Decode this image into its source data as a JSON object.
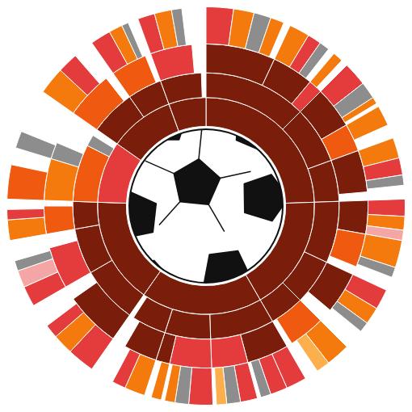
{
  "chart_data": {
    "type": "sunburst",
    "tick_labels": false,
    "nodes": [
      {
        "value": 88,
        "color": "#7a1e0b",
        "children": [
          {
            "value": 45,
            "color": "#7a1e0b",
            "children": [
              {
                "value": 25,
                "color": "#7a1e0b",
                "children": [
                  {
                    "value": 8,
                    "color": "#e43b3d"
                  },
                  {
                    "value": 6,
                    "color": "#f47a0e"
                  },
                  {
                    "value": 5,
                    "color": "#8d8d8d"
                  },
                  {
                    "value": 4,
                    "color": "#f47a0e"
                  }
                ]
              },
              {
                "value": 15,
                "color": "#7a1e0b",
                "children": [
                  {
                    "value": 6,
                    "color": "#f47a0e"
                  },
                  {
                    "value": 4,
                    "color": "#e43b3d"
                  },
                  {
                    "value": 3,
                    "color": "#8d8d8d"
                  }
                ]
              },
              {
                "value": 5,
                "color": "#e43b3d",
                "children": [
                  {
                    "value": 3,
                    "color": "#f47a0e"
                  }
                ]
              }
            ]
          },
          {
            "value": 25,
            "color": "#7a1e0b",
            "children": [
              {
                "value": 15,
                "color": "#7a1e0b",
                "children": [
                  {
                    "value": 7,
                    "color": "#e43b3d"
                  },
                  {
                    "value": 5,
                    "color": "#8d8d8d"
                  },
                  {
                    "value": 2,
                    "color": "#f47a0e"
                  }
                ]
              },
              {
                "value": 10,
                "color": "#ef5a10",
                "children": [
                  {
                    "value": 6,
                    "color": "#f47a0e"
                  }
                ]
              }
            ]
          },
          {
            "value": 18,
            "color": "#7a1e0b",
            "children": [
              {
                "value": 15,
                "color": "#7a1e0b",
                "children": [
                  {
                    "value": 6,
                    "color": "#f47a0e"
                  },
                  {
                    "value": 5,
                    "color": "#e43b3d"
                  },
                  {
                    "value": 3,
                    "color": "#8d8d8d"
                  }
                ]
              }
            ]
          }
        ]
      },
      {
        "value": 62,
        "color": "#7a1e0b",
        "children": [
          {
            "value": 27,
            "color": "#7a1e0b",
            "children": [
              {
                "value": 12,
                "color": "#7a1e0b",
                "children": [
                  {
                    "value": 5,
                    "color": "#e43b3d"
                  },
                  {
                    "value": 4,
                    "color": "#f47a0e"
                  },
                  {
                    "value": 3,
                    "color": "#f4a6a6"
                  }
                ]
              },
              {
                "value": 12,
                "color": "#ef5a10",
                "children": [
                  {
                    "value": 8,
                    "color": "#f47a0e"
                  },
                  {
                    "value": 3,
                    "color": "#8d8d8d"
                  }
                ]
              }
            ]
          },
          {
            "value": 20,
            "color": "#7a1e0b",
            "children": [
              {
                "value": 15,
                "color": "#7a1e0b",
                "children": [
                  {
                    "value": 6,
                    "color": "#e43b3d"
                  },
                  {
                    "value": 5,
                    "color": "#f47a0e"
                  },
                  {
                    "value": 3,
                    "color": "#8d8d8d"
                  }
                ]
              }
            ]
          },
          {
            "value": 15,
            "color": "#7a1e0b",
            "children": [
              {
                "value": 13,
                "color": "#ef5a10",
                "children": [
                  {
                    "value": 7,
                    "color": "#f47a0e"
                  },
                  {
                    "value": 4,
                    "color": "#fbb04d"
                  }
                ]
              }
            ]
          }
        ]
      },
      {
        "value": 65,
        "color": "#7a1e0b",
        "children": [
          {
            "value": 28,
            "color": "#7a1e0b",
            "children": [
              {
                "value": 15,
                "color": "#7a1e0b",
                "children": [
                  {
                    "value": 6,
                    "color": "#e43b3d"
                  },
                  {
                    "value": 5,
                    "color": "#e43b3d"
                  },
                  {
                    "value": 3,
                    "color": "#8d8d8d"
                  }
                ]
              },
              {
                "value": 13,
                "color": "#e43b3d",
                "children": [
                  {
                    "value": 5,
                    "color": "#e43b3d"
                  },
                  {
                    "value": 4,
                    "color": "#8d8d8d"
                  },
                  {
                    "value": 3,
                    "color": "#fbb04d"
                  }
                ]
              }
            ]
          },
          {
            "value": 20,
            "color": "#7a1e0b",
            "children": [
              {
                "value": 15,
                "color": "#e43b3d",
                "children": [
                  {
                    "value": 7,
                    "color": "#e43b3d"
                  },
                  {
                    "value": 4,
                    "color": "#8d8d8d"
                  },
                  {
                    "value": 3,
                    "color": "#f47a0e"
                  }
                ]
              },
              {
                "value": 5,
                "color": "#7a1e0b",
                "children": [
                  {
                    "value": 3,
                    "color": "#f47a0e"
                  }
                ]
              }
            ]
          },
          {
            "value": 15,
            "color": "#7a1e0b",
            "children": [
              {
                "value": 12,
                "color": "#7a1e0b",
                "children": [
                  {
                    "value": 6,
                    "color": "#f47a0e"
                  },
                  {
                    "value": 4,
                    "color": "#e43b3d"
                  }
                ]
              }
            ]
          }
        ]
      },
      {
        "value": 57,
        "color": "#7a1e0b",
        "children": [
          {
            "value": 25,
            "color": "#7a1e0b",
            "children": [
              {
                "value": 20,
                "color": "#7a1e0b",
                "children": [
                  {
                    "value": 8,
                    "color": "#e43b3d"
                  },
                  {
                    "value": 6,
                    "color": "#f47a0e"
                  },
                  {
                    "value": 4,
                    "color": "#e43b3d"
                  }
                ]
              }
            ]
          },
          {
            "value": 20,
            "color": "#7a1e0b",
            "children": [
              {
                "value": 15,
                "color": "#e43b3d",
                "children": [
                  {
                    "value": 6,
                    "color": "#e43b3d"
                  },
                  {
                    "value": 5,
                    "color": "#f4a6a6"
                  },
                  {
                    "value": 3,
                    "color": "#8d8d8d"
                  }
                ]
              }
            ]
          },
          {
            "value": 12,
            "color": "#7a1e0b",
            "children": [
              {
                "value": 10,
                "color": "#ef5a10",
                "children": [
                  {
                    "value": 6,
                    "color": "#f47a0e"
                  },
                  {
                    "value": 3,
                    "color": "#e43b3d"
                  }
                ]
              }
            ]
          }
        ]
      },
      {
        "value": 33,
        "color": "#e43b3d",
        "children": [
          {
            "value": 25,
            "color": "#ef5a10",
            "children": [
              {
                "value": 15,
                "color": "#f47a0e",
                "children": [
                  {
                    "value": 10,
                    "color": "#ef5a10"
                  }
                ]
              },
              {
                "value": 6,
                "color": "#8d8d8d",
                "children": [
                  {
                    "value": 5,
                    "color": "#8d8d8d"
                  }
                ]
              }
            ]
          },
          {
            "value": 5,
            "color": "#8d8d8d"
          }
        ]
      },
      {
        "value": 35,
        "color": "#7a1e0b",
        "children": [
          {
            "value": 20,
            "color": "#7a1e0b",
            "children": [
              {
                "value": 17,
                "color": "#ef5a10",
                "children": [
                  {
                    "value": 8,
                    "color": "#f47a0e"
                  },
                  {
                    "value": 6,
                    "color": "#e43b3d"
                  }
                ]
              }
            ]
          },
          {
            "value": 15,
            "color": "#7a1e0b",
            "children": [
              {
                "value": 13,
                "color": "#ef5a10",
                "children": [
                  {
                    "value": 6,
                    "color": "#e43b3d"
                  },
                  {
                    "value": 4,
                    "color": "#f47a0e"
                  },
                  {
                    "value": 2,
                    "color": "#8d8d8d"
                  }
                ]
              }
            ]
          }
        ]
      },
      {
        "value": 20,
        "color": "#7a1e0b",
        "children": [
          {
            "value": 18,
            "color": "#7a1e0b",
            "children": [
              {
                "value": 15,
                "color": "#e43b3d",
                "children": [
                  {
                    "value": 5,
                    "color": "#e43b3d"
                  },
                  {
                    "value": 5,
                    "color": "#f47a0e"
                  },
                  {
                    "value": 3,
                    "color": "#8d8d8d"
                  }
                ]
              }
            ]
          }
        ]
      }
    ]
  }
}
